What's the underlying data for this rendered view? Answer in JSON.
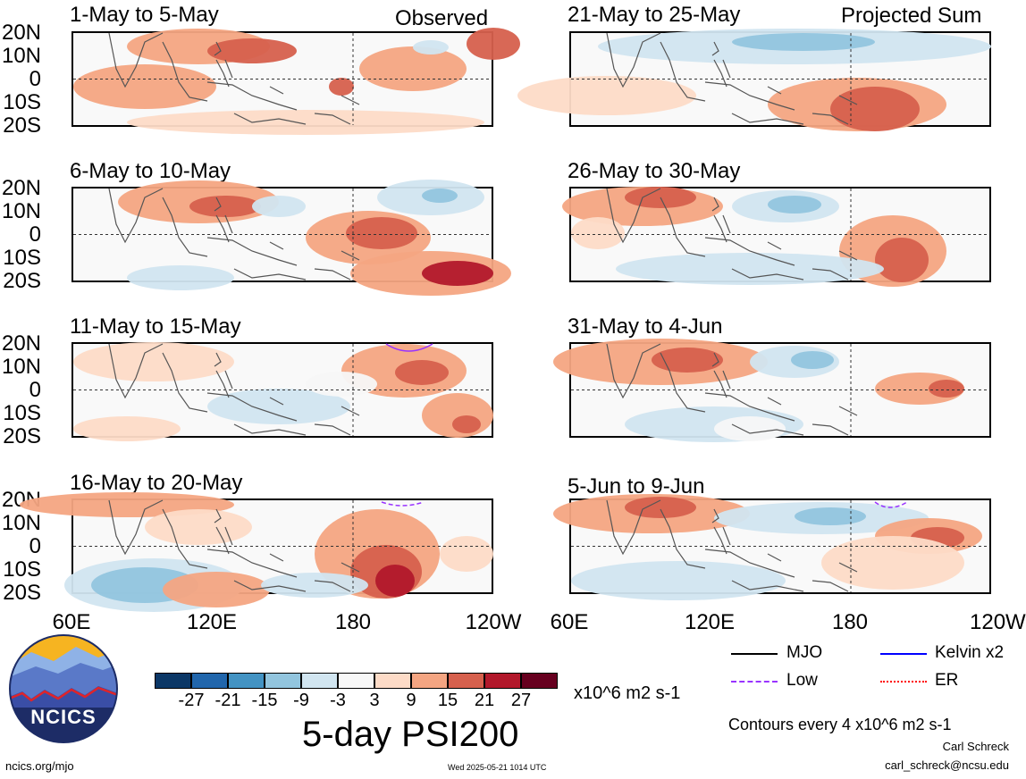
{
  "header": {
    "left_label": "Observed",
    "right_label": "Projected Sum"
  },
  "panels": {
    "left": [
      {
        "title": "1-May to 5-May"
      },
      {
        "title": "6-May to 10-May"
      },
      {
        "title": "11-May to 15-May"
      },
      {
        "title": "16-May to 20-May"
      }
    ],
    "right": [
      {
        "title": "21-May to 25-May"
      },
      {
        "title": "26-May to 30-May"
      },
      {
        "title": "31-May to 4-Jun"
      },
      {
        "title": "5-Jun to 9-Jun"
      }
    ]
  },
  "lat_labels": [
    "20N",
    "10N",
    "0",
    "10S",
    "20S"
  ],
  "lon_labels": [
    "60E",
    "120E",
    "180",
    "120W"
  ],
  "lon_labels_right": [
    "60E",
    "120E",
    "180",
    "120W"
  ],
  "colorbar": {
    "labels": [
      "-27",
      "-21",
      "-15",
      "-9",
      "-3",
      "3",
      "9",
      "15",
      "21",
      "27"
    ],
    "colors": [
      "#0b3766",
      "#2166ac",
      "#4393c3",
      "#92c5de",
      "#d1e5f0",
      "#f7f7f7",
      "#fddbc7",
      "#f4a582",
      "#d6604d",
      "#b2182b",
      "#67001f"
    ],
    "units": "x10^6 m2 s-1",
    "title": "5-day PSI200"
  },
  "legend": {
    "mjo": "MJO",
    "kelvin": "Kelvin x2",
    "low": "Low",
    "er": "ER",
    "mjo_color": "#000000",
    "kelvin_color": "#0000ff",
    "low_color": "#9933ff",
    "er_color": "#ff0000",
    "contour_note": "Contours every 4 x10^6 m2 s-1"
  },
  "credits": {
    "logo_text": "NCICS",
    "url": "ncics.org/mjo",
    "timestamp": "Wed 2025-05-21 1014 UTC",
    "author": "Carl Schreck",
    "email": "carl_schreck@ncsu.edu"
  }
}
